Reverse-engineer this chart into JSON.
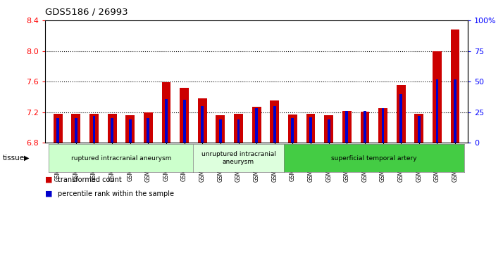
{
  "title": "GDS5186 / 26993",
  "samples": [
    "GSM1306885",
    "GSM1306886",
    "GSM1306887",
    "GSM1306888",
    "GSM1306889",
    "GSM1306890",
    "GSM1306891",
    "GSM1306892",
    "GSM1306893",
    "GSM1306894",
    "GSM1306895",
    "GSM1306896",
    "GSM1306897",
    "GSM1306898",
    "GSM1306899",
    "GSM1306900",
    "GSM1306901",
    "GSM1306902",
    "GSM1306903",
    "GSM1306904",
    "GSM1306905",
    "GSM1306906",
    "GSM1306907"
  ],
  "red_values": [
    7.18,
    7.18,
    7.18,
    7.18,
    7.16,
    7.2,
    7.59,
    7.52,
    7.38,
    7.16,
    7.18,
    7.27,
    7.35,
    7.17,
    7.18,
    7.16,
    7.22,
    7.21,
    7.25,
    7.56,
    7.18,
    8.0,
    8.28
  ],
  "blue_values": [
    20,
    20,
    22,
    20,
    19,
    20,
    36,
    35,
    30,
    19,
    19,
    28,
    30,
    20,
    21,
    19,
    26,
    26,
    28,
    40,
    22,
    52,
    52
  ],
  "groups": [
    {
      "label": "ruptured intracranial aneurysm",
      "start": 0,
      "end": 8,
      "color": "#ccffcc"
    },
    {
      "label": "unruptured intracranial\naneurysm",
      "start": 8,
      "end": 13,
      "color": "#ddffdd"
    },
    {
      "label": "superficial temporal artery",
      "start": 13,
      "end": 23,
      "color": "#44cc44"
    }
  ],
  "ylim_left": [
    6.8,
    8.4
  ],
  "ylim_right": [
    0,
    100
  ],
  "yticks_left": [
    6.8,
    7.2,
    7.6,
    8.0,
    8.4
  ],
  "yticks_right": [
    0,
    25,
    50,
    75,
    100
  ],
  "ytick_right_labels": [
    "0",
    "25",
    "50",
    "75",
    "100%"
  ],
  "red_bar_width": 0.5,
  "blue_bar_width": 0.15,
  "red_color": "#cc0000",
  "blue_color": "#0000cc",
  "bar_base": 6.8,
  "grid_lines": [
    7.2,
    7.6,
    8.0
  ],
  "legend_items": [
    {
      "color": "#cc0000",
      "label": "transformed count"
    },
    {
      "color": "#0000cc",
      "label": "percentile rank within the sample"
    }
  ]
}
